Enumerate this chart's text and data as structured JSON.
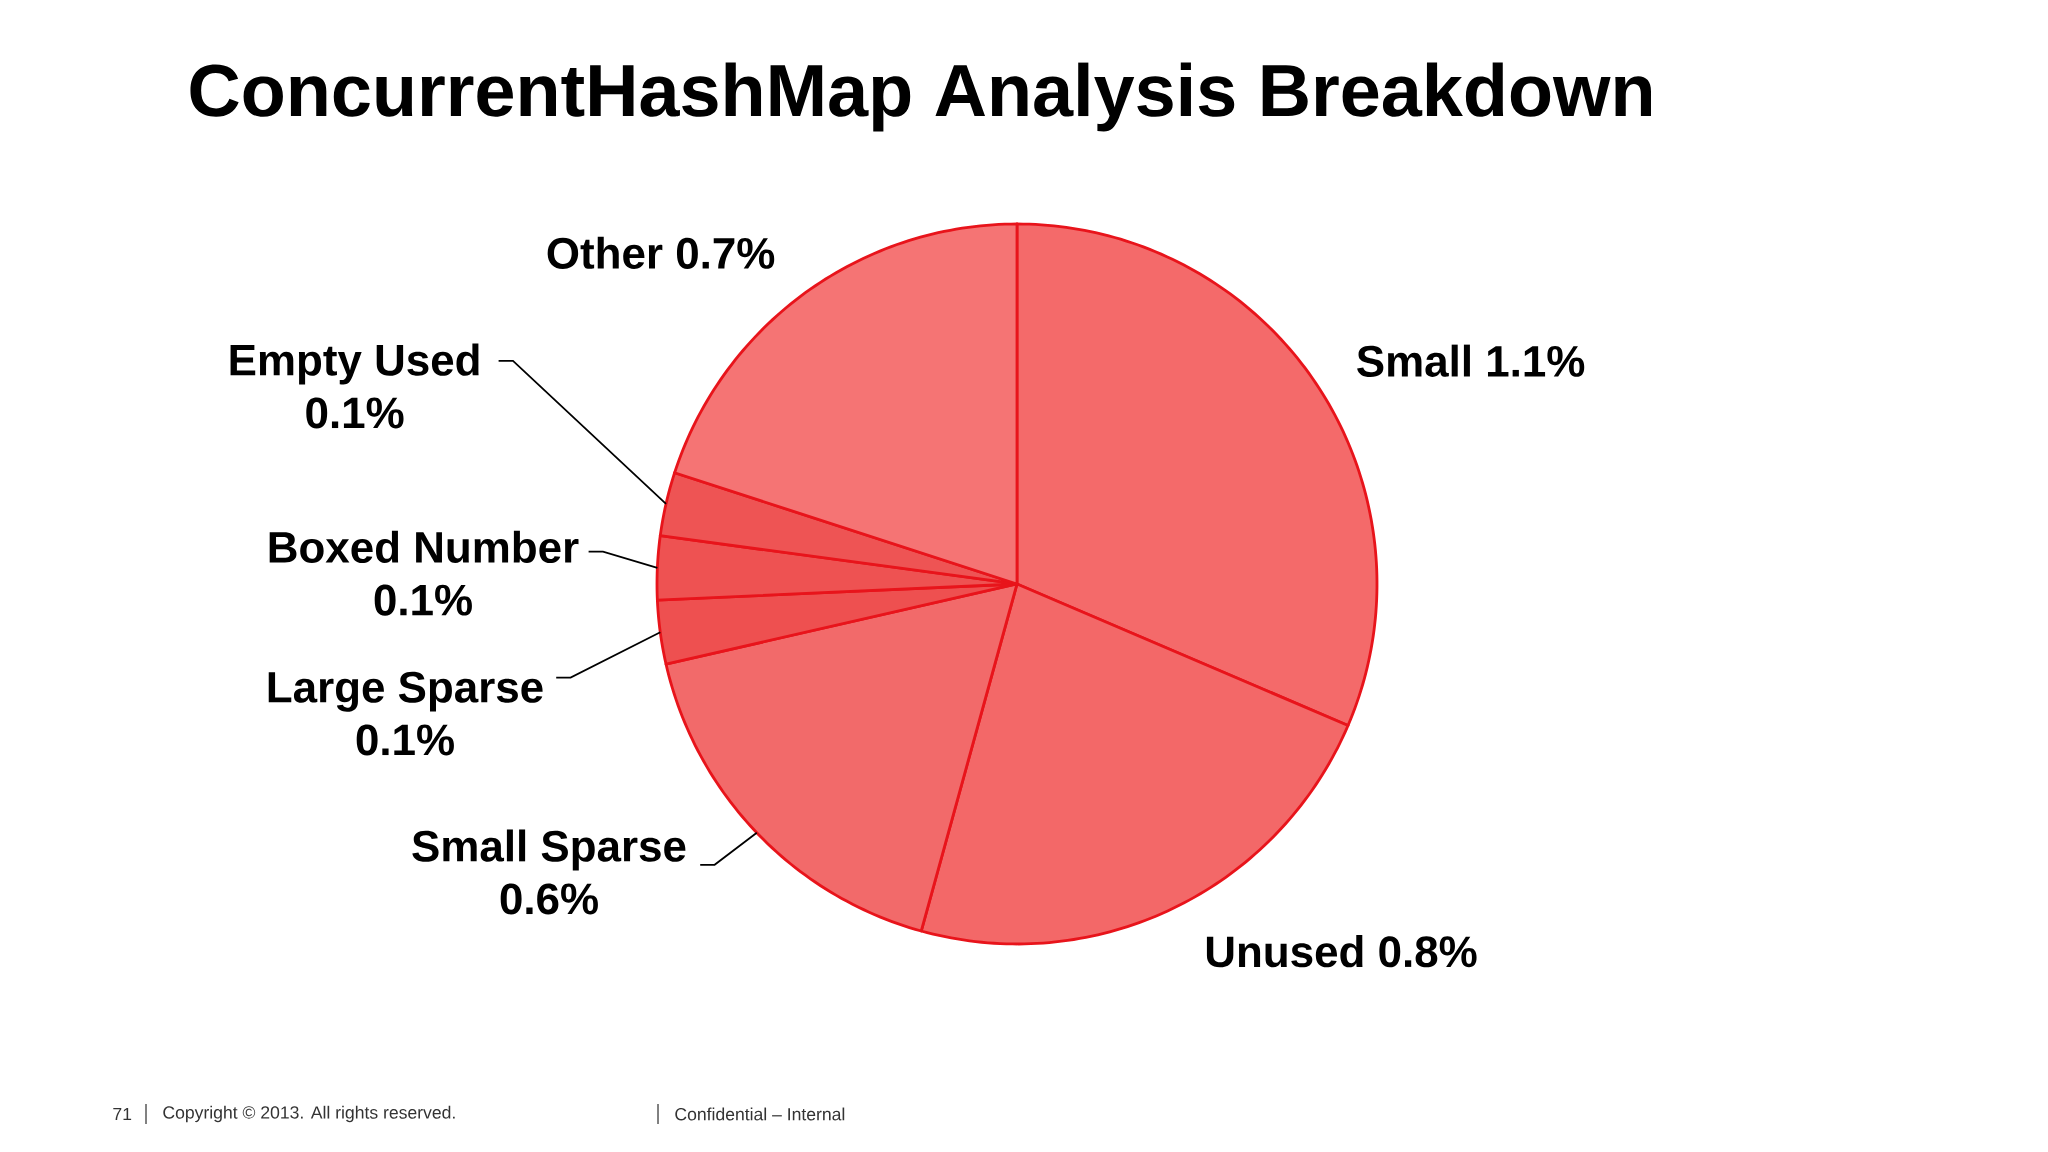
{
  "chart_data": {
    "type": "pie",
    "title": "ConcurrentHashMap Analysis Breakdown",
    "categories": [
      "Small",
      "Unused",
      "Small Sparse",
      "Large Sparse",
      "Boxed Number",
      "Empty Used",
      "Other"
    ],
    "values": [
      1.1,
      0.8,
      0.6,
      0.1,
      0.1,
      0.1,
      0.7
    ],
    "value_labels": [
      "1.1%",
      "0.8%",
      "0.6%",
      "0.1%",
      "0.1%",
      "0.1%",
      "0.7%"
    ],
    "colors": [
      "#f46a6a",
      "#f36868",
      "#f26a6a",
      "#ee5050",
      "#ee5252",
      "#ee5454",
      "#f57474"
    ],
    "annotations": [
      "71",
      "Copyright © 2013. All rights reserved.",
      "Confidential – Internal"
    ]
  }
}
